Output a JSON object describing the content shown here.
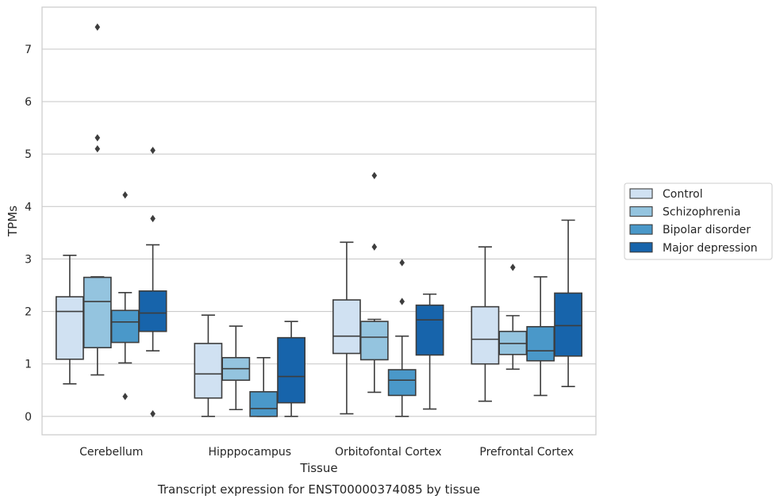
{
  "caption": "Transcript expression for ENST00000374085 by tissue",
  "chart_data": {
    "type": "boxplot",
    "xlabel": "Tissue",
    "ylabel": "TPMs",
    "ylim": [
      -0.35,
      7.8
    ],
    "yticks": [
      0,
      1,
      2,
      3,
      4,
      5,
      6,
      7
    ],
    "grid": "horizontal",
    "legend_position": "right",
    "categories": [
      "Cerebellum",
      "Hipppocampus",
      "Orbitofontal Cortex",
      "Prefrontal Cortex"
    ],
    "series": [
      {
        "name": "Control",
        "color": "#d0e1f2",
        "boxes": [
          {
            "whisker_low": 0.62,
            "q1": 1.09,
            "median": 2.0,
            "q3": 2.28,
            "whisker_high": 3.07,
            "outliers": []
          },
          {
            "whisker_low": 0.0,
            "q1": 0.35,
            "median": 0.81,
            "q3": 1.39,
            "whisker_high": 1.93,
            "outliers": []
          },
          {
            "whisker_low": 0.05,
            "q1": 1.2,
            "median": 1.53,
            "q3": 2.22,
            "whisker_high": 3.32,
            "outliers": []
          },
          {
            "whisker_low": 0.29,
            "q1": 1.0,
            "median": 1.47,
            "q3": 2.09,
            "whisker_high": 3.23,
            "outliers": []
          }
        ]
      },
      {
        "name": "Schizophrenia",
        "color": "#94c4df",
        "boxes": [
          {
            "whisker_low": 0.79,
            "q1": 1.31,
            "median": 2.19,
            "q3": 2.65,
            "whisker_high": 2.66,
            "outliers": [
              7.42,
              5.31,
              5.1
            ]
          },
          {
            "whisker_low": 0.13,
            "q1": 0.69,
            "median": 0.91,
            "q3": 1.12,
            "whisker_high": 1.72,
            "outliers": []
          },
          {
            "whisker_low": 0.46,
            "q1": 1.08,
            "median": 1.51,
            "q3": 1.81,
            "whisker_high": 1.85,
            "outliers": [
              4.59,
              3.23
            ]
          },
          {
            "whisker_low": 0.9,
            "q1": 1.18,
            "median": 1.39,
            "q3": 1.62,
            "whisker_high": 1.92,
            "outliers": [
              2.84
            ]
          }
        ]
      },
      {
        "name": "Bipolar disorder",
        "color": "#4a98c9",
        "boxes": [
          {
            "whisker_low": 1.02,
            "q1": 1.41,
            "median": 1.8,
            "q3": 2.02,
            "whisker_high": 2.36,
            "outliers": [
              4.22,
              0.38
            ]
          },
          {
            "whisker_low": 0.0,
            "q1": 0.0,
            "median": 0.15,
            "q3": 0.47,
            "whisker_high": 1.12,
            "outliers": []
          },
          {
            "whisker_low": 0.0,
            "q1": 0.4,
            "median": 0.69,
            "q3": 0.89,
            "whisker_high": 1.53,
            "outliers": [
              2.93,
              2.19
            ]
          },
          {
            "whisker_low": 0.4,
            "q1": 1.06,
            "median": 1.25,
            "q3": 1.71,
            "whisker_high": 2.66,
            "outliers": []
          }
        ]
      },
      {
        "name": "Major depression",
        "color": "#1764ab",
        "boxes": [
          {
            "whisker_low": 1.25,
            "q1": 1.62,
            "median": 1.97,
            "q3": 2.39,
            "whisker_high": 3.27,
            "outliers": [
              5.07,
              3.77,
              0.05
            ]
          },
          {
            "whisker_low": 0.0,
            "q1": 0.26,
            "median": 0.76,
            "q3": 1.5,
            "whisker_high": 1.81,
            "outliers": []
          },
          {
            "whisker_low": 0.14,
            "q1": 1.17,
            "median": 1.84,
            "q3": 2.12,
            "whisker_high": 2.33,
            "outliers": []
          },
          {
            "whisker_low": 0.57,
            "q1": 1.15,
            "median": 1.73,
            "q3": 2.35,
            "whisker_high": 3.74,
            "outliers": []
          }
        ]
      }
    ]
  }
}
